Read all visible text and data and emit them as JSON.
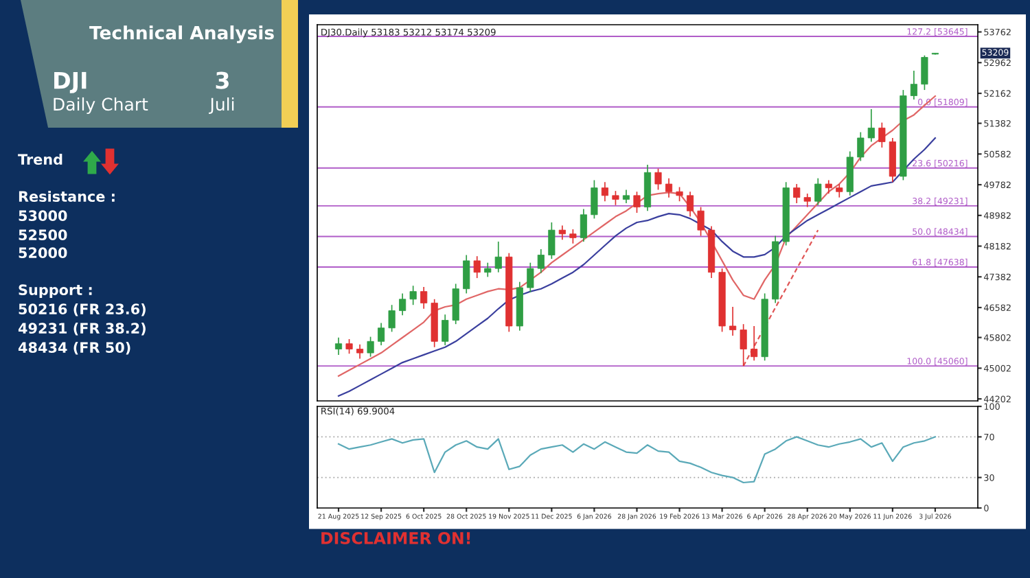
{
  "chart_data": [
    {
      "type": "candlestick",
      "title": "DJ30.Daily 53183 53212 53174 53209",
      "categories": [
        null,
        null,
        null,
        null,
        null,
        null,
        null,
        null,
        null,
        null,
        null,
        null,
        null,
        null,
        null,
        null,
        null,
        null,
        null,
        null,
        null,
        null,
        null,
        null,
        null,
        null,
        null,
        null,
        null,
        null,
        null,
        null,
        null,
        null,
        null,
        null,
        null,
        null,
        null,
        null,
        null,
        null,
        null,
        null,
        null,
        null,
        null,
        null,
        null,
        null,
        null,
        null,
        null,
        null,
        null,
        null,
        null
      ],
      "ohlc": [
        [
          45500,
          45800,
          45350,
          45640
        ],
        [
          45640,
          45760,
          45380,
          45500
        ],
        [
          45500,
          45620,
          45250,
          45400
        ],
        [
          45400,
          45820,
          45300,
          45700
        ],
        [
          45700,
          46180,
          45600,
          46050
        ],
        [
          46050,
          46650,
          45950,
          46500
        ],
        [
          46500,
          46950,
          46380,
          46800
        ],
        [
          46800,
          47150,
          46650,
          47000
        ],
        [
          47000,
          47120,
          46550,
          46700
        ],
        [
          46700,
          46800,
          45550,
          45700
        ],
        [
          45700,
          46400,
          45600,
          46250
        ],
        [
          46250,
          47200,
          46150,
          47070
        ],
        [
          47070,
          47950,
          46950,
          47800
        ],
        [
          47800,
          47920,
          47350,
          47500
        ],
        [
          47500,
          47750,
          47380,
          47600
        ],
        [
          47600,
          48300,
          47500,
          47900
        ],
        [
          47900,
          48000,
          45950,
          46100
        ],
        [
          46100,
          47250,
          45980,
          47100
        ],
        [
          47100,
          47750,
          46980,
          47600
        ],
        [
          47600,
          48100,
          47480,
          47950
        ],
        [
          47950,
          48800,
          47850,
          48600
        ],
        [
          48600,
          48720,
          48350,
          48500
        ],
        [
          48500,
          48620,
          48250,
          48400
        ],
        [
          48400,
          49150,
          48300,
          49000
        ],
        [
          49000,
          49900,
          48900,
          49700
        ],
        [
          49700,
          49850,
          49350,
          49500
        ],
        [
          49500,
          49620,
          49250,
          49400
        ],
        [
          49400,
          49650,
          49300,
          49500
        ],
        [
          49500,
          49600,
          49050,
          49200
        ],
        [
          49200,
          50300,
          49100,
          50100
        ],
        [
          50100,
          50200,
          49650,
          49800
        ],
        [
          49800,
          49950,
          49450,
          49600
        ],
        [
          49600,
          49720,
          49350,
          49500
        ],
        [
          49500,
          49600,
          48950,
          49100
        ],
        [
          49100,
          49200,
          48450,
          48600
        ],
        [
          48600,
          48700,
          47350,
          47500
        ],
        [
          47500,
          47600,
          45950,
          46100
        ],
        [
          46100,
          46600,
          45850,
          46000
        ],
        [
          46000,
          46150,
          45060,
          45500
        ],
        [
          45500,
          46100,
          45200,
          45300
        ],
        [
          45300,
          46950,
          45200,
          46800
        ],
        [
          46800,
          48450,
          46700,
          48300
        ],
        [
          48300,
          49850,
          48200,
          49700
        ],
        [
          49700,
          49800,
          49300,
          49450
        ],
        [
          49450,
          49550,
          49200,
          49350
        ],
        [
          49350,
          49950,
          49250,
          49800
        ],
        [
          49800,
          49900,
          49550,
          49700
        ],
        [
          49700,
          49800,
          49450,
          49600
        ],
        [
          49600,
          50650,
          49500,
          50500
        ],
        [
          50500,
          51150,
          50400,
          51000
        ],
        [
          51000,
          51750,
          50900,
          51260
        ],
        [
          51260,
          51400,
          50750,
          50900
        ],
        [
          50900,
          51000,
          49850,
          50000
        ],
        [
          50000,
          52250,
          49900,
          52100
        ],
        [
          52100,
          52750,
          52000,
          52400
        ],
        [
          52400,
          53150,
          52250,
          53100
        ],
        [
          53183,
          53212,
          53174,
          53209
        ]
      ],
      "colors": [
        "#2f9e44",
        "#e03131",
        "#e03131",
        "#2f9e44",
        "#2f9e44",
        "#2f9e44",
        "#2f9e44",
        "#2f9e44",
        "#e03131",
        "#e03131",
        "#2f9e44",
        "#2f9e44",
        "#2f9e44",
        "#e03131",
        "#2f9e44",
        "#2f9e44",
        "#e03131",
        "#2f9e44",
        "#2f9e44",
        "#2f9e44",
        "#2f9e44",
        "#e03131",
        "#e03131",
        "#2f9e44",
        "#2f9e44",
        "#e03131",
        "#e03131",
        "#2f9e44",
        "#e03131",
        "#2f9e44",
        "#e03131",
        "#e03131",
        "#e03131",
        "#e03131",
        "#e03131",
        "#e03131",
        "#e03131",
        "#e03131",
        "#e03131",
        "#e03131",
        "#2f9e44",
        "#2f9e44",
        "#2f9e44",
        "#e03131",
        "#e03131",
        "#2f9e44",
        "#e03131",
        "#e03131",
        "#2f9e44",
        "#2f9e44",
        "#2f9e44",
        "#e03131",
        "#e03131",
        "#2f9e44",
        "#2f9e44",
        "#2f9e44",
        "#2f9e44"
      ],
      "series": [
        {
          "type": "line",
          "color": "#e06666",
          "values": [
            44800,
            44950,
            45100,
            45250,
            45400,
            45600,
            45800,
            46000,
            46200,
            46500,
            46600,
            46650,
            46800,
            46900,
            47000,
            47070,
            47050,
            47100,
            47300,
            47500,
            47750,
            47950,
            48150,
            48350,
            48550,
            48750,
            48950,
            49100,
            49300,
            49500,
            49550,
            49580,
            49550,
            49200,
            48800,
            48300,
            47800,
            47300,
            46900,
            46800,
            47300,
            47700,
            48400,
            48700,
            49000,
            49300,
            49600,
            49800,
            50100,
            50500,
            50800,
            51000,
            51200,
            51450,
            51600,
            51850,
            52090
          ]
        },
        {
          "type": "line",
          "color": "#3a3f9e",
          "values": [
            44280,
            44400,
            44550,
            44700,
            44850,
            45000,
            45150,
            45250,
            45350,
            45450,
            45550,
            45700,
            45900,
            46100,
            46300,
            46550,
            46780,
            46900,
            47000,
            47070,
            47200,
            47350,
            47500,
            47700,
            47950,
            48200,
            48450,
            48650,
            48800,
            48850,
            48950,
            49030,
            49000,
            48900,
            48750,
            48600,
            48300,
            48050,
            47900,
            47900,
            47960,
            48150,
            48450,
            48650,
            48850,
            49000,
            49150,
            49300,
            49450,
            49600,
            49750,
            49800,
            49850,
            50150,
            50450,
            50700,
            51000
          ]
        },
        {
          "type": "line",
          "color": "#e05555",
          "line_style": "dashed",
          "values": [
            null,
            null,
            null,
            null,
            null,
            null,
            null,
            null,
            null,
            null,
            null,
            null,
            null,
            null,
            null,
            null,
            null,
            null,
            null,
            null,
            null,
            null,
            null,
            null,
            null,
            null,
            null,
            null,
            null,
            null,
            null,
            null,
            null,
            null,
            null,
            null,
            null,
            null,
            45060,
            45570,
            46070,
            46580,
            47080,
            47590,
            48090,
            48600,
            null,
            null,
            null,
            null,
            null,
            null,
            null,
            null,
            null,
            null,
            null
          ]
        }
      ],
      "ylim": [
        44150,
        53950
      ],
      "yticks": [
        44202,
        45002,
        45802,
        46582,
        47382,
        48182,
        48982,
        49782,
        50582,
        51382,
        52162,
        52962,
        53762
      ],
      "ref_lines": [
        {
          "axis": "y",
          "value": 53645,
          "label": "127.2 [53645]",
          "color": "#b05cc8"
        },
        {
          "axis": "y",
          "value": 51809,
          "label": "0.0 [51809]",
          "color": "#b05cc8"
        },
        {
          "axis": "y",
          "value": 50216,
          "label": "23.6 [50216]",
          "color": "#b05cc8"
        },
        {
          "axis": "y",
          "value": 49231,
          "label": "38.2 [49231]",
          "color": "#b05cc8"
        },
        {
          "axis": "y",
          "value": 48434,
          "label": "50.0 [48434]",
          "color": "#b05cc8"
        },
        {
          "axis": "y",
          "value": 47638,
          "label": "61.8 [47638]",
          "color": "#b05cc8"
        },
        {
          "axis": "y",
          "value": 45060,
          "label": "100.0 [45060]",
          "color": "#b05cc8"
        }
      ],
      "annotations": [
        "53209"
      ],
      "tick_labels": "y",
      "grid": false,
      "legend": false
    },
    {
      "type": "line",
      "title": "RSI(14) 69.9004",
      "categories": [
        "21 Aug 2025",
        null,
        null,
        null,
        "12 Sep 2025",
        null,
        null,
        null,
        "6 Oct 2025",
        null,
        null,
        null,
        "28 Oct 2025",
        null,
        null,
        null,
        "19 Nov 2025",
        null,
        null,
        null,
        "11 Dec 2025",
        null,
        null,
        null,
        "6 Jan 2026",
        null,
        null,
        null,
        "28 Jan 2026",
        null,
        null,
        null,
        "19 Feb 2026",
        null,
        null,
        null,
        "13 Mar 2026",
        null,
        null,
        null,
        "6 Apr 2026",
        null,
        null,
        null,
        "28 Apr 2026",
        null,
        null,
        null,
        "20 May 2026",
        null,
        null,
        null,
        "11 Jun 2026",
        null,
        null,
        null,
        "3 Jul 2026"
      ],
      "series": [
        {
          "color": "#5aa9b8",
          "values": [
            63,
            58,
            60,
            62,
            65,
            68,
            64,
            67,
            68,
            35,
            55,
            62,
            66,
            60,
            58,
            68,
            38,
            41,
            52,
            58,
            60,
            62,
            55,
            63,
            58,
            65,
            60,
            55,
            54,
            62,
            56,
            55,
            46,
            44,
            40,
            35,
            32,
            30,
            25,
            26,
            53,
            58,
            66,
            70,
            66,
            62,
            60,
            63,
            65,
            68,
            60,
            64,
            46,
            60,
            64,
            66,
            70
          ]
        }
      ],
      "ylim": [
        0,
        100
      ],
      "yticks": [
        0,
        30,
        70,
        100
      ],
      "ref_lines": [
        {
          "axis": "y",
          "value": 70,
          "color": "#aaaaaa",
          "line_style": "dotted"
        },
        {
          "axis": "y",
          "value": 30,
          "color": "#aaaaaa",
          "line_style": "dotted"
        }
      ],
      "annotations": [
        "DISCLAIMER ON!"
      ],
      "grid": false,
      "legend": false
    },
    {
      "type": "other",
      "title": "Technical Analysis",
      "annotations": [
        "DJI",
        "Daily Chart",
        "3",
        "Juli",
        "Trend",
        "Resistance :",
        "53000",
        "52500",
        "52000",
        "Support :",
        "50216 (FR 23.6)",
        "49231 (FR 38.2)",
        "48434 (FR 50)"
      ]
    }
  ]
}
